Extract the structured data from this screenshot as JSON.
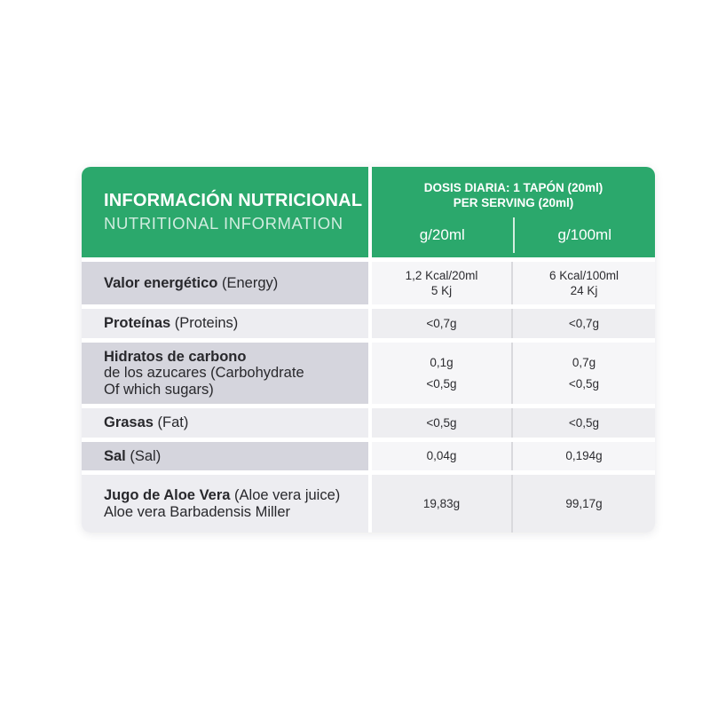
{
  "card": {
    "header": {
      "title_es": "INFORMACIÓN NUTRICIONAL",
      "title_en": "NUTRITIONAL INFORMATION",
      "serving_line1": "DOSIS DIARIA: 1 TAPÓN (20ml)",
      "serving_line2": "PER SERVING (20ml)",
      "unit_col1": "g/20ml",
      "unit_col2": "g/100ml"
    },
    "rows": [
      {
        "shade": "dark",
        "label_lines": [
          [
            {
              "text": "Valor energético ",
              "bold": true
            },
            {
              "text": "(Energy)",
              "bold": false
            }
          ]
        ],
        "values_20ml": [
          "1,2 Kcal/20ml",
          "5 Kj"
        ],
        "values_100ml": [
          "6 Kcal/100ml",
          "24 Kj"
        ]
      },
      {
        "shade": "light",
        "label_lines": [
          [
            {
              "text": "Proteínas ",
              "bold": true
            },
            {
              "text": "(Proteins)",
              "bold": false
            }
          ]
        ],
        "values_20ml": [
          "<0,7g"
        ],
        "values_100ml": [
          "<0,7g"
        ]
      },
      {
        "shade": "dark",
        "label_lines": [
          [
            {
              "text": "Hidratos de carbono",
              "bold": true
            }
          ],
          [
            {
              "text": "de los azucares (Carbohydrate",
              "bold": false
            }
          ],
          [
            {
              "text": "Of which sugars)",
              "bold": false
            }
          ]
        ],
        "values_20ml": [
          "0,1g",
          "<0,5g"
        ],
        "values_100ml": [
          "0,7g",
          "<0,5g"
        ]
      },
      {
        "shade": "light",
        "label_lines": [
          [
            {
              "text": "Grasas ",
              "bold": true
            },
            {
              "text": "(Fat)",
              "bold": false
            }
          ]
        ],
        "values_20ml": [
          "<0,5g"
        ],
        "values_100ml": [
          "<0,5g"
        ]
      },
      {
        "shade": "dark",
        "label_lines": [
          [
            {
              "text": "Sal ",
              "bold": true
            },
            {
              "text": "(Sal)",
              "bold": false
            }
          ]
        ],
        "values_20ml": [
          "0,04g"
        ],
        "values_100ml": [
          "0,194g"
        ]
      },
      {
        "shade": "light",
        "label_lines": [
          [
            {
              "text": "Jugo de Aloe Vera ",
              "bold": true
            },
            {
              "text": "(Aloe vera juice)",
              "bold": false
            }
          ],
          [
            {
              "text": "Aloe vera Barbadensis Miller",
              "bold": false
            }
          ]
        ],
        "values_20ml": [
          "19,83g"
        ],
        "values_100ml": [
          "99,17g"
        ]
      }
    ]
  },
  "colors": {
    "header_green": "#2ba86c",
    "row_shade_dark": "#d5d5dd",
    "row_shade_light": "#ededf1",
    "value_on_dark": "#f6f6f8",
    "value_on_light": "#eeeef1",
    "divider_gray": "#d9d9dd",
    "text_dark": "#28282c"
  }
}
